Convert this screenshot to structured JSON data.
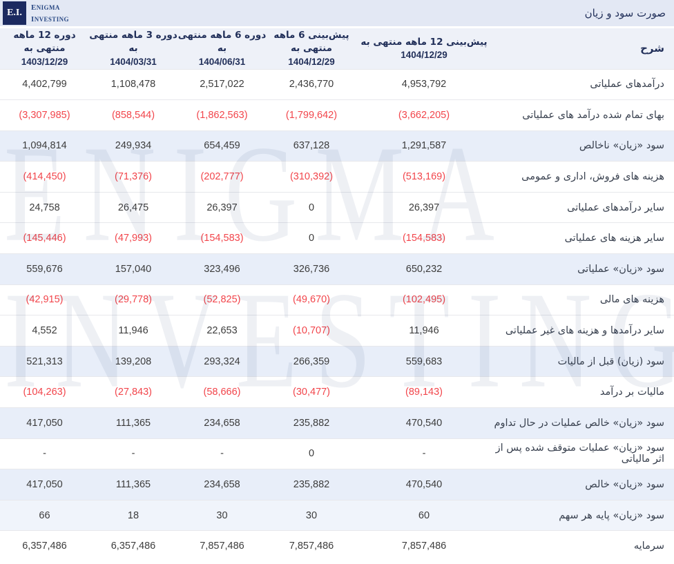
{
  "topbar": {
    "logo_badge": "E.I.",
    "logo_line1": "Enigma",
    "logo_line2": "Investing",
    "title": "صورت سود و زیان"
  },
  "watermark": {
    "line1": "ENIGMA",
    "line2": "INVESTING"
  },
  "table": {
    "desc_header": "شرح",
    "columns": [
      {
        "label": "پیش‌بینی 12 ماهه منتهی به",
        "date": "1404/12/29"
      },
      {
        "label": "پیش‌بینی 6 ماهه منتهی به",
        "date": "1404/12/29"
      },
      {
        "label": "دوره 6 ماهه منتهی به",
        "date": "1404/06/31"
      },
      {
        "label": "دوره 3 ماهه منتهی به",
        "date": "1404/03/31"
      },
      {
        "label": "دوره 12 ماهه منتهی به",
        "date": "1403/12/29"
      }
    ],
    "rows": [
      {
        "label": "درآمدهای عملیاتی",
        "highlight": false,
        "values": [
          "4,953,792",
          "2,436,770",
          "2,517,022",
          "1,108,478",
          "4,402,799"
        ]
      },
      {
        "label": "بهای تمام شده درآمد های عملیاتی",
        "highlight": false,
        "values": [
          "(3,662,205)",
          "(1,799,642)",
          "(1,862,563)",
          "(858,544)",
          "(3,307,985)"
        ]
      },
      {
        "label": "سود «زیان» ناخالص",
        "highlight": true,
        "values": [
          "1,291,587",
          "637,128",
          "654,459",
          "249,934",
          "1,094,814"
        ]
      },
      {
        "label": "هزینه های فروش، اداری و عمومی",
        "highlight": false,
        "values": [
          "(513,169)",
          "(310,392)",
          "(202,777)",
          "(71,376)",
          "(414,450)"
        ]
      },
      {
        "label": "سایر درآمدهای عملیاتی",
        "highlight": false,
        "values": [
          "26,397",
          "0",
          "26,397",
          "26,475",
          "24,758"
        ]
      },
      {
        "label": "سایر هزینه های عملیاتی",
        "highlight": false,
        "values": [
          "(154,583)",
          "0",
          "(154,583)",
          "(47,993)",
          "(145,446)"
        ]
      },
      {
        "label": "سود «زیان» عملیاتی",
        "highlight": true,
        "values": [
          "650,232",
          "326,736",
          "323,496",
          "157,040",
          "559,676"
        ]
      },
      {
        "label": "هزینه های مالی",
        "highlight": false,
        "values": [
          "(102,495)",
          "(49,670)",
          "(52,825)",
          "(29,778)",
          "(42,915)"
        ]
      },
      {
        "label": "سایر درآمدها و هزینه های غیر عملیاتی",
        "highlight": false,
        "values": [
          "11,946",
          "(10,707)",
          "22,653",
          "11,946",
          "4,552"
        ]
      },
      {
        "label": "سود (زیان) قبل از مالیات",
        "highlight": true,
        "values": [
          "559,683",
          "266,359",
          "293,324",
          "139,208",
          "521,313"
        ]
      },
      {
        "label": "مالیات بر درآمد",
        "highlight": false,
        "values": [
          "(89,143)",
          "(30,477)",
          "(58,666)",
          "(27,843)",
          "(104,263)"
        ]
      },
      {
        "label": "سود «زیان» خالص عملیات در حال تداوم",
        "highlight": true,
        "values": [
          "470,540",
          "235,882",
          "234,658",
          "111,365",
          "417,050"
        ]
      },
      {
        "label": "سود «زیان» عملیات متوقف شده پس از اثر مالیاتی",
        "highlight": false,
        "values": [
          "-",
          "0",
          "-",
          "-",
          "-"
        ]
      },
      {
        "label": "سود «زیان» خالص",
        "highlight": true,
        "values": [
          "470,540",
          "235,882",
          "234,658",
          "111,365",
          "417,050"
        ]
      },
      {
        "label": "سود «زیان» پایه هر سهم",
        "highlight": "light",
        "values": [
          "60",
          "30",
          "30",
          "18",
          "66"
        ]
      },
      {
        "label": "سرمایه",
        "highlight": false,
        "values": [
          "7,857,486",
          "7,857,486",
          "7,857,486",
          "6,357,486",
          "6,357,486"
        ]
      }
    ]
  },
  "colors": {
    "topbar_bg": "#e3e8f4",
    "header_bg": "#eef1f8",
    "row_highlight": "#e8eef9",
    "row_highlight_light": "#f0f4fb",
    "navy": "#22305a",
    "logo_box_bg": "#1c2a60",
    "logo_text": "#2b4a85",
    "text_dark": "#3c3c3c",
    "text_label": "#39414f",
    "red": "#f2454b",
    "border": "#e7e8ec",
    "watermark": "rgba(31,51,112,0.075)"
  }
}
